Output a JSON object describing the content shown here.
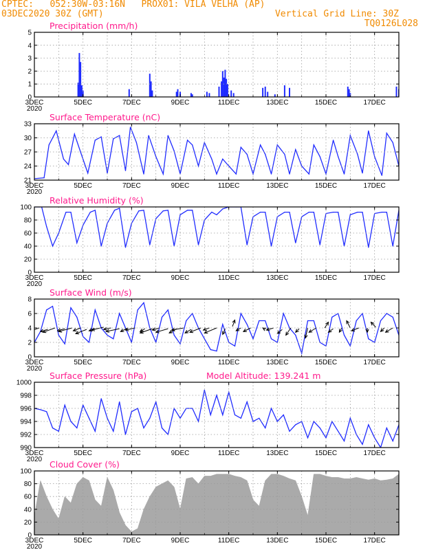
{
  "header": {
    "line1_left": "CPTEC:   052:30W-03:16N   PROX01: VILA VELHA (AP)",
    "line2_left": "03DEC2020 30Z (GMT)",
    "line2_right": "Vertical Grid Line: 30Z",
    "line3_right": "TQ0126L028"
  },
  "colors": {
    "header": "#f08a00",
    "title": "#ff1a8c",
    "series": "#1f2bff",
    "cloud": "#aaaaaa",
    "arrow": "#000000"
  },
  "chart_data": [
    {
      "type": "bar",
      "title": "Precipitation (mm/h)",
      "ylim": [
        0,
        5
      ],
      "yticks": [
        "0",
        "1",
        "2",
        "3",
        "4",
        "5"
      ],
      "x": [
        4.8,
        4.85,
        4.9,
        4.95,
        5.0,
        6.9,
        7.75,
        7.8,
        7.85,
        8.85,
        8.9,
        9.0,
        9.45,
        9.5,
        10.1,
        10.2,
        10.6,
        10.7,
        10.75,
        10.8,
        10.85,
        10.9,
        10.95,
        11.1,
        11.2,
        12.4,
        12.5,
        12.6,
        12.9,
        13.3,
        13.5,
        15.9,
        15.95,
        16.0,
        17.9,
        18.0
      ],
      "values": [
        1.1,
        3.4,
        2.7,
        0.9,
        0.5,
        0.6,
        1.8,
        1.2,
        0.5,
        0.4,
        0.6,
        0.4,
        0.3,
        0.2,
        0.4,
        0.3,
        0.8,
        1.2,
        2.0,
        1.5,
        2.1,
        1.4,
        1.0,
        0.5,
        0.3,
        0.7,
        0.8,
        0.4,
        0.2,
        0.9,
        0.7,
        0.8,
        0.6,
        0.3,
        0.8,
        0.6
      ]
    },
    {
      "type": "line",
      "title": "Surface Temperature (nC)",
      "ylim": [
        21,
        33
      ],
      "yticks": [
        "21",
        "24",
        "27",
        "30",
        "33"
      ],
      "x": [
        3.0,
        3.4,
        3.6,
        3.9,
        4.2,
        4.4,
        4.65,
        4.9,
        5.2,
        5.5,
        5.75,
        6.0,
        6.25,
        6.5,
        6.75,
        6.95,
        7.2,
        7.5,
        7.7,
        8.0,
        8.3,
        8.5,
        8.75,
        9.0,
        9.3,
        9.5,
        9.75,
        10.0,
        10.3,
        10.5,
        10.75,
        11.0,
        11.3,
        11.5,
        11.75,
        12.0,
        12.3,
        12.5,
        12.75,
        13.0,
        13.3,
        13.5,
        13.75,
        14.0,
        14.3,
        14.5,
        14.75,
        15.0,
        15.3,
        15.5,
        15.75,
        16.0,
        16.3,
        16.5,
        16.75,
        17.0,
        17.3,
        17.5,
        17.75,
        18.0
      ],
      "values": [
        21.3,
        21.5,
        28.5,
        31.5,
        25.5,
        24.3,
        30.8,
        27.0,
        22.5,
        29.5,
        30.2,
        22.5,
        29.8,
        30.5,
        23.0,
        32.3,
        29.0,
        22.3,
        30.5,
        26.0,
        22.3,
        30.5,
        27.2,
        22.3,
        29.5,
        28.5,
        24.0,
        29.0,
        25.5,
        22.3,
        25.5,
        24.0,
        22.3,
        28.0,
        26.5,
        22.3,
        28.5,
        26.5,
        22.3,
        28.5,
        26.5,
        22.3,
        27.5,
        24.0,
        22.3,
        28.5,
        26.0,
        22.3,
        29.5,
        26.0,
        22.3,
        30.5,
        26.5,
        22.5,
        31.5,
        26.0,
        22.0,
        31.0,
        29.0,
        24.0
      ]
    },
    {
      "type": "line",
      "title": "Relative Humidity (%)",
      "ylim": [
        0,
        100
      ],
      "yticks": [
        "0",
        "20",
        "40",
        "60",
        "80",
        "100"
      ],
      "x": [
        3.0,
        3.3,
        3.5,
        3.75,
        4.0,
        4.3,
        4.5,
        4.75,
        5.0,
        5.3,
        5.5,
        5.75,
        6.0,
        6.3,
        6.5,
        6.75,
        7.0,
        7.3,
        7.5,
        7.75,
        8.0,
        8.3,
        8.5,
        8.75,
        9.0,
        9.3,
        9.5,
        9.75,
        10.0,
        10.3,
        10.5,
        10.75,
        11.0,
        11.3,
        11.5,
        11.75,
        12.0,
        12.3,
        12.5,
        12.75,
        13.0,
        13.3,
        13.5,
        13.75,
        14.0,
        14.3,
        14.5,
        14.75,
        15.0,
        15.3,
        15.5,
        15.75,
        16.0,
        16.3,
        16.5,
        16.75,
        17.0,
        17.3,
        17.5,
        17.75,
        18.0
      ],
      "values": [
        100,
        100,
        70,
        40,
        60,
        92,
        92,
        45,
        72,
        92,
        95,
        40,
        75,
        95,
        98,
        38,
        75,
        94,
        95,
        42,
        82,
        94,
        95,
        40,
        88,
        95,
        95,
        42,
        80,
        92,
        88,
        97,
        100,
        100,
        100,
        42,
        85,
        92,
        92,
        40,
        85,
        92,
        92,
        45,
        85,
        92,
        92,
        42,
        90,
        92,
        92,
        40,
        88,
        92,
        92,
        38,
        90,
        92,
        92,
        40,
        95
      ]
    },
    {
      "type": "line",
      "title": "Surface Wind (m/s)",
      "ylim": [
        0,
        8
      ],
      "yticks": [
        "0",
        "2",
        "4",
        "6",
        "8"
      ],
      "x": [
        3.0,
        3.25,
        3.5,
        3.75,
        4.0,
        4.25,
        4.5,
        4.75,
        5.0,
        5.25,
        5.5,
        5.75,
        6.0,
        6.25,
        6.5,
        6.75,
        7.0,
        7.25,
        7.5,
        7.75,
        8.0,
        8.25,
        8.5,
        8.75,
        9.0,
        9.25,
        9.5,
        9.75,
        10.0,
        10.25,
        10.5,
        10.75,
        11.0,
        11.25,
        11.5,
        11.75,
        12.0,
        12.25,
        12.5,
        12.75,
        13.0,
        13.25,
        13.5,
        13.75,
        14.0,
        14.25,
        14.5,
        14.75,
        15.0,
        15.25,
        15.5,
        15.75,
        16.0,
        16.25,
        16.5,
        16.75,
        17.0,
        17.25,
        17.5,
        17.75,
        18.0
      ],
      "values": [
        2.0,
        3.5,
        6.5,
        7.0,
        3.0,
        1.8,
        6.8,
        5.5,
        2.8,
        2.0,
        6.5,
        4.0,
        3.0,
        2.5,
        6.0,
        4.0,
        2.0,
        6.5,
        7.5,
        4.0,
        2.0,
        5.5,
        6.5,
        3.0,
        1.8,
        5.0,
        6.0,
        4.0,
        2.5,
        1.0,
        0.8,
        4.5,
        2.0,
        1.5,
        6.0,
        4.5,
        2.5,
        5.0,
        5.0,
        2.5,
        2.0,
        6.0,
        4.0,
        3.0,
        0.5,
        5.0,
        5.0,
        2.0,
        1.5,
        5.5,
        6.0,
        3.0,
        1.5,
        5.0,
        6.0,
        2.5,
        2.0,
        5.0,
        6.0,
        5.5,
        3.0
      ],
      "vectors": {
        "x": [
          3.2,
          3.55,
          3.85,
          4.25,
          4.55,
          4.9,
          5.15,
          5.5,
          5.85,
          6.15,
          6.5,
          6.85,
          7.15,
          7.55,
          7.85,
          8.15,
          8.5,
          8.85,
          9.15,
          9.45,
          9.85,
          10.2,
          10.5,
          10.85,
          11.15,
          11.5,
          11.9,
          12.5,
          12.85,
          13.2,
          13.55,
          13.9,
          14.25,
          14.6,
          14.95,
          15.3,
          15.65,
          16.0,
          16.35,
          16.7,
          17.05,
          17.4,
          17.75
        ],
        "y": [
          4.0,
          3.8,
          4.0,
          3.9,
          4.0,
          4.0,
          3.8,
          3.9,
          4.1,
          4.0,
          3.9,
          4.0,
          4.0,
          3.9,
          3.9,
          4.0,
          3.9,
          3.9,
          4.0,
          3.8,
          4.0,
          4.0,
          4.0,
          3.9,
          4.2,
          4.0,
          4.0,
          3.8,
          4.0,
          3.8,
          4.0,
          3.9,
          4.0,
          4.0,
          4.0,
          3.9,
          4.0,
          4.0,
          4.0,
          4.0,
          4.1,
          4.0,
          4.0
        ],
        "dx": [
          -0.5,
          -0.3,
          -0.5,
          -0.3,
          -0.55,
          -0.3,
          -0.45,
          -0.25,
          -0.5,
          -0.3,
          -0.55,
          -0.3,
          -0.4,
          -0.2,
          -0.5,
          -0.3,
          -0.5,
          -0.3,
          -0.5,
          -0.25,
          -0.45,
          -0.25,
          -0.5,
          -0.1,
          0.1,
          -0.2,
          -0.3,
          -0.1,
          -0.3,
          -0.2,
          -0.2,
          -0.15,
          -0.1,
          -0.3,
          0.15,
          -0.2,
          -0.1,
          -0.15,
          -0.3,
          0.0,
          -0.2,
          -0.15,
          -0.3
        ],
        "dy": [
          -0.6,
          -0.3,
          -0.6,
          -0.3,
          -0.5,
          -0.4,
          -0.6,
          -0.3,
          -0.4,
          -0.2,
          -0.4,
          -0.5,
          -0.3,
          -0.4,
          -0.6,
          -0.3,
          -0.5,
          -0.6,
          -0.3,
          -0.5,
          -0.6,
          -0.3,
          -0.7,
          -0.8,
          0.9,
          -0.4,
          -0.5,
          0.2,
          -0.3,
          -0.6,
          -1.0,
          -0.5,
          -1.4,
          -0.6,
          0.8,
          -0.5,
          -0.6,
          1.0,
          -0.4,
          -0.6,
          0.7,
          -0.5,
          -0.6
        ]
      }
    },
    {
      "type": "line",
      "title": "Surface Pressure (hPa)",
      "annotation": "Model Altitude: 139.241 m",
      "ylim": [
        990,
        1000
      ],
      "yticks": [
        "990",
        "992",
        "994",
        "996",
        "998",
        "1000"
      ],
      "x": [
        3.0,
        3.25,
        3.5,
        3.75,
        4.0,
        4.25,
        4.5,
        4.75,
        5.0,
        5.25,
        5.5,
        5.75,
        6.0,
        6.25,
        6.5,
        6.75,
        7.0,
        7.25,
        7.5,
        7.75,
        8.0,
        8.25,
        8.5,
        8.75,
        9.0,
        9.25,
        9.5,
        9.75,
        10.0,
        10.25,
        10.5,
        10.75,
        11.0,
        11.25,
        11.5,
        11.75,
        12.0,
        12.25,
        12.5,
        12.75,
        13.0,
        13.25,
        13.5,
        13.75,
        14.0,
        14.25,
        14.5,
        14.75,
        15.0,
        15.25,
        15.5,
        15.75,
        16.0,
        16.25,
        16.5,
        16.75,
        17.0,
        17.25,
        17.5,
        17.75,
        18.0
      ],
      "values": [
        996.0,
        995.8,
        995.5,
        993.0,
        992.5,
        996.5,
        994.0,
        993.0,
        996.5,
        994.5,
        992.5,
        997.5,
        994.5,
        992.5,
        997.0,
        992.0,
        995.5,
        996.0,
        993.0,
        994.5,
        997.0,
        993.0,
        992.0,
        996.0,
        994.5,
        996.0,
        996.0,
        994.0,
        998.8,
        995.0,
        998.0,
        995.0,
        998.5,
        995.0,
        994.5,
        997.0,
        994.0,
        994.5,
        993.0,
        996.0,
        994.0,
        995.0,
        992.5,
        993.5,
        994.0,
        991.5,
        994.0,
        993.0,
        991.5,
        994.0,
        992.5,
        991.0,
        994.5,
        992.0,
        990.5,
        993.5,
        991.5,
        990.0,
        993.0,
        991.0,
        993.5
      ]
    },
    {
      "type": "area",
      "title": "Cloud Cover (%)",
      "ylim": [
        0,
        100
      ],
      "yticks": [
        "0",
        "20",
        "40",
        "60",
        "80",
        "100"
      ],
      "x": [
        3.0,
        3.25,
        3.5,
        3.75,
        4.0,
        4.25,
        4.5,
        4.75,
        5.0,
        5.25,
        5.5,
        5.75,
        6.0,
        6.25,
        6.5,
        6.75,
        7.0,
        7.25,
        7.5,
        7.75,
        8.0,
        8.25,
        8.5,
        8.75,
        9.0,
        9.25,
        9.5,
        9.75,
        10.0,
        10.25,
        10.5,
        10.75,
        11.0,
        11.25,
        11.5,
        11.75,
        12.0,
        12.25,
        12.5,
        12.75,
        13.0,
        13.25,
        13.5,
        13.75,
        14.0,
        14.25,
        14.5,
        14.75,
        15.0,
        15.25,
        15.5,
        15.75,
        16.0,
        16.25,
        16.5,
        16.75,
        17.0,
        17.25,
        17.5,
        17.75,
        18.0
      ],
      "values": [
        30,
        85,
        60,
        40,
        25,
        60,
        50,
        80,
        90,
        85,
        55,
        45,
        90,
        70,
        35,
        15,
        5,
        10,
        40,
        60,
        75,
        80,
        85,
        75,
        40,
        88,
        90,
        80,
        92,
        92,
        95,
        95,
        95,
        92,
        90,
        85,
        55,
        45,
        85,
        95,
        95,
        92,
        88,
        85,
        60,
        30,
        95,
        95,
        92,
        90,
        90,
        88,
        88,
        90,
        88,
        86,
        88,
        85,
        86,
        88,
        95
      ]
    }
  ],
  "xaxis": {
    "ticks": [
      3,
      5,
      7,
      9,
      11,
      13,
      15,
      17
    ],
    "labels": [
      "3DEC",
      "5DEC",
      "7DEC",
      "9DEC",
      "11DEC",
      "13DEC",
      "15DEC",
      "17DEC"
    ],
    "year": "2020",
    "xlim": [
      3,
      18
    ],
    "vertical_grid_every": 1
  }
}
